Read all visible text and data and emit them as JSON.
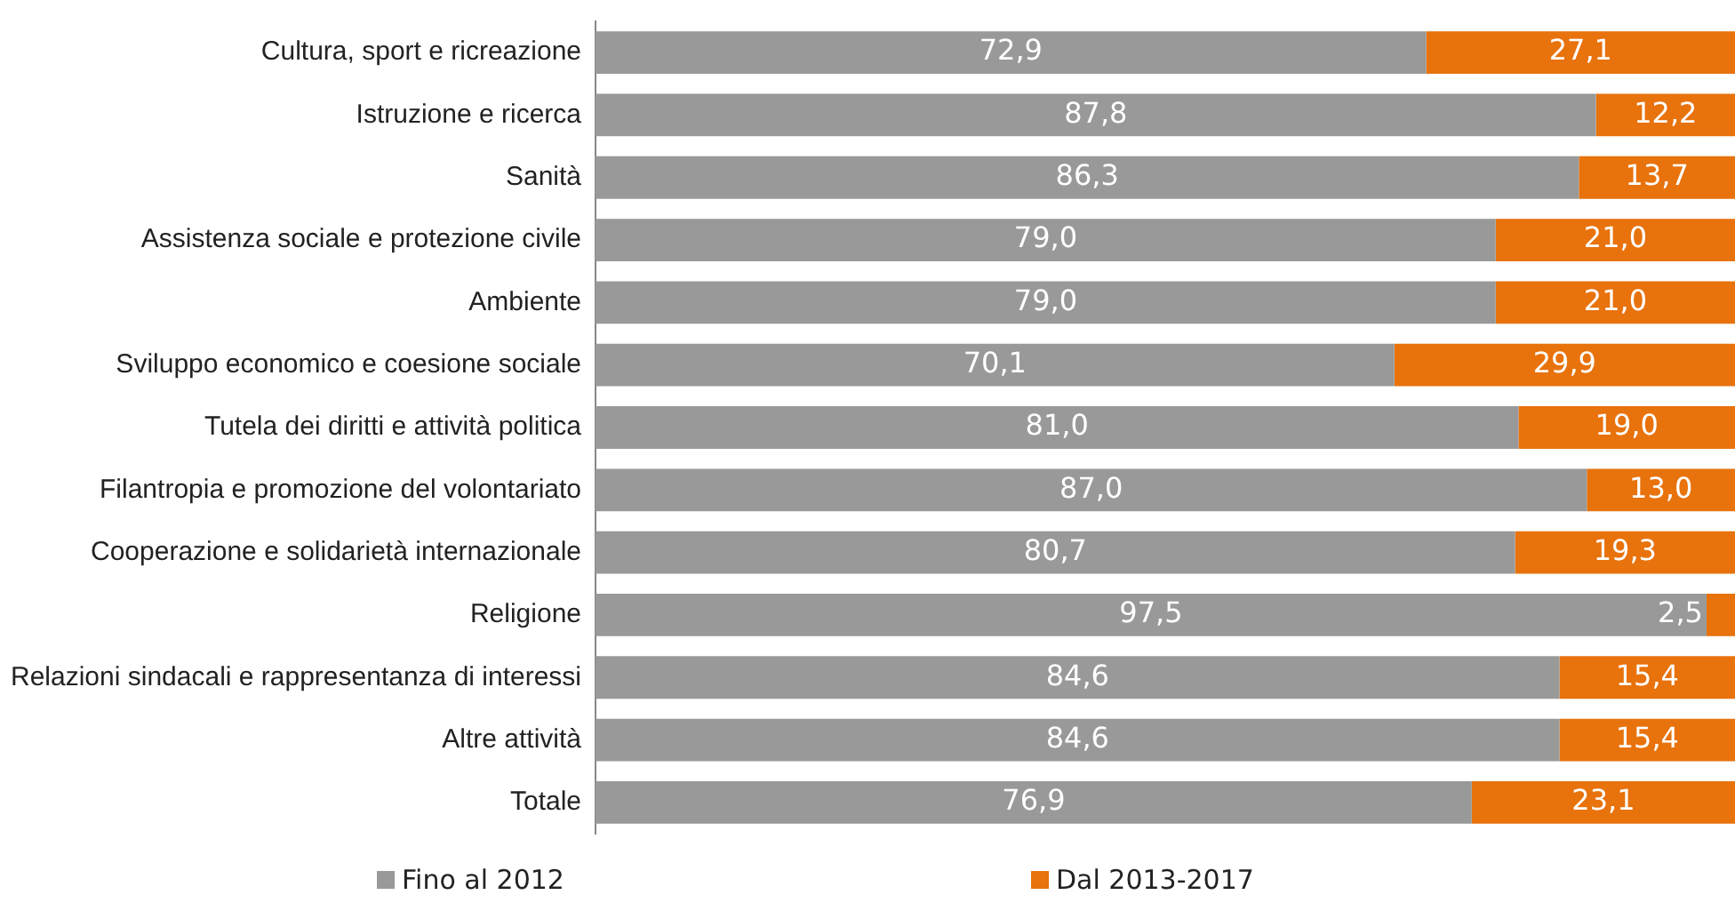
{
  "chart_data": {
    "type": "bar",
    "orientation": "horizontal",
    "stacked": true,
    "legend": "bottom",
    "categories": [
      "Cultura, sport e ricreazione",
      "Istruzione e ricerca",
      "Sanità",
      "Assistenza sociale e protezione civile",
      "Ambiente",
      "Sviluppo economico e coesione sociale",
      "Tutela dei diritti e attività politica",
      "Filantropia e promozione del volontariato",
      "Cooperazione e solidarietà internazionale",
      "Religione",
      "Relazioni sindacali e rappresentanza di interessi",
      "Altre attività",
      "Totale"
    ],
    "series": [
      {
        "name": "Fino al 2012",
        "color": "#999999",
        "values": [
          72.9,
          87.8,
          86.3,
          79.0,
          79.0,
          70.1,
          81.0,
          87.0,
          80.7,
          97.5,
          84.6,
          84.6,
          76.9
        ],
        "value_labels": [
          "72,9",
          "87,8",
          "86,3",
          "79,0",
          "79,0",
          "70,1",
          "81,0",
          "87,0",
          "80,7",
          "97,5",
          "84,6",
          "84,6",
          "76,9"
        ]
      },
      {
        "name": "Dal 2013-2017",
        "color": "#e8720c",
        "values": [
          27.1,
          12.2,
          13.7,
          21.0,
          21.0,
          29.9,
          19.0,
          13.0,
          19.3,
          2.5,
          15.4,
          15.4,
          23.1
        ],
        "value_labels": [
          "27,1",
          "12,2",
          "13,7",
          "21,0",
          "21,0",
          "29,9",
          "19,0",
          "13,0",
          "19,3",
          "2,5",
          "15,4",
          "15,4",
          "23,1"
        ]
      }
    ]
  }
}
